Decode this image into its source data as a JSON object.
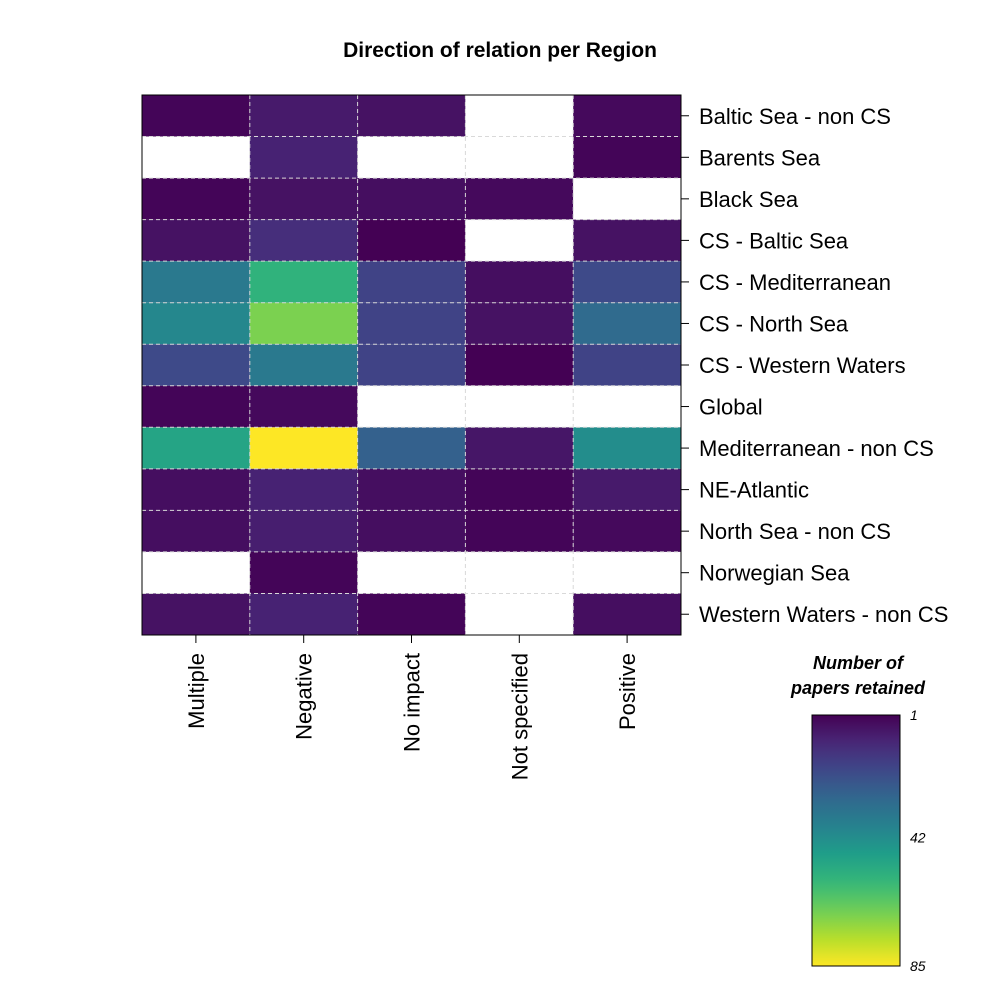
{
  "chart_data": {
    "type": "heatmap",
    "title": "Direction of relation per Region",
    "columns": [
      "Multiple",
      "Negative",
      "No impact",
      "Not specified",
      "Positive"
    ],
    "rows": [
      "Baltic Sea - non CS",
      "Barents Sea",
      "Black Sea",
      "CS - Baltic Sea",
      "CS - Mediterranean",
      "CS - North Sea",
      "CS - Western Waters",
      "Global",
      "Mediterranean - non CS",
      "NE-Atlantic",
      "North Sea - non CS",
      "Norwegian Sea",
      "Western Waters - non CS"
    ],
    "values": [
      [
        2,
        7,
        5,
        null,
        3
      ],
      [
        null,
        9,
        null,
        null,
        2
      ],
      [
        2,
        5,
        4,
        3,
        null
      ],
      [
        5,
        12,
        1,
        null,
        5
      ],
      [
        35,
        55,
        18,
        4,
        20
      ],
      [
        40,
        68,
        18,
        5,
        30
      ],
      [
        20,
        35,
        18,
        1,
        18
      ],
      [
        2,
        3,
        null,
        null,
        null
      ],
      [
        50,
        85,
        27,
        6,
        42
      ],
      [
        4,
        9,
        4,
        2,
        7
      ],
      [
        4,
        8,
        4,
        2,
        3
      ],
      [
        null,
        2,
        null,
        null,
        null
      ],
      [
        5,
        9,
        2,
        null,
        4
      ]
    ],
    "colorscale": "viridis-reversed",
    "color_range": [
      1,
      85
    ],
    "legend": {
      "title_lines": [
        "Number of",
        "papers retained"
      ],
      "ticks": [
        {
          "value": 1,
          "label": "1"
        },
        {
          "value": 42,
          "label": "42"
        },
        {
          "value": 85,
          "label": "85"
        }
      ],
      "placement": "bottom-right"
    },
    "grid": "dashed white cell borders",
    "empty_cell_color": "#ffffff"
  }
}
